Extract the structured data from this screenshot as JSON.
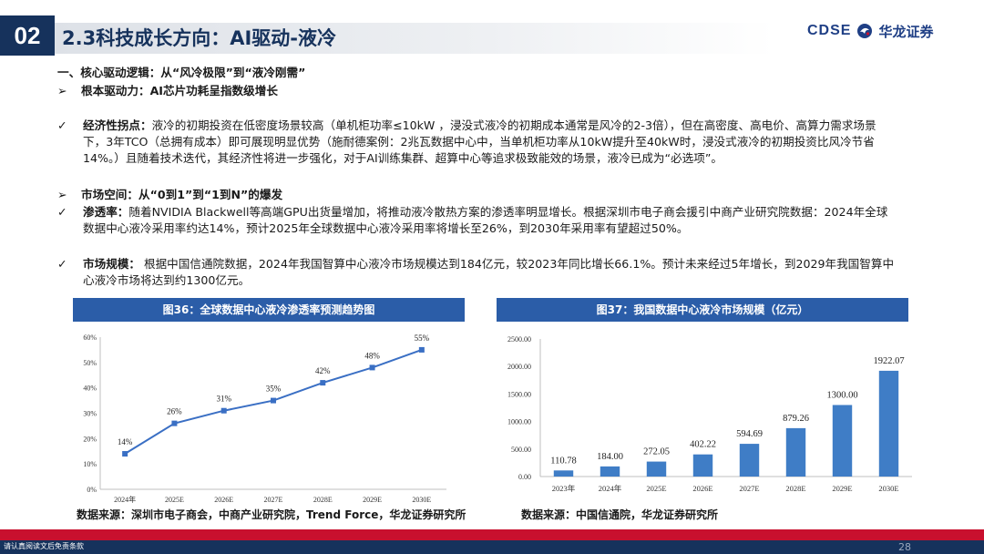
{
  "header": {
    "section_number": "02",
    "title": "2.3科技成长方向：AI驱动-液冷",
    "logo_text": "CDSE",
    "logo_cn": "华龙证券"
  },
  "content": {
    "heading1": "一、核心驱动逻辑：从“风冷极限”到“液冷刚需”",
    "sub1_bullet": "➢",
    "sub1": "根本驱动力：AI芯片功耗呈指数级增长",
    "p1_bullet": "✓",
    "p1_label": "经济性拐点：",
    "p1_text": "液冷的初期投资在低密度场景较高（单机柜功率≤10kW ，浸没式液冷的初期成本通常是风冷的2-3倍），但在高密度、高电价、高算力需求场景下，3年TCO（总拥有成本）即可展现明显优势（施耐德案例：2兆瓦数据中心中，当单机柜功率从10kW提升至40kW时，浸没式液冷的初期投资比风冷节省14%。）且随着技术迭代，其经济性将进一步强化，对于AI训练集群、超算中心等追求极致能效的场景，液冷已成为“必选项”。",
    "sub2_bullet": "➢",
    "sub2": "市场空间：从“0到1”到“1到N”的爆发",
    "p2_bullet": "✓",
    "p2_label": "渗透率：",
    "p2_text": "随着NVIDIA Blackwell等高端GPU出货量增加，将推动液冷散热方案的渗透率明显增长。根据深圳市电子商会援引中商产业研究院数据：2024年全球数据中心液冷采用率约达14%，预计2025年全球数据中心液冷采用率将增长至26%，到2030年采用率有望超过50%。",
    "p3_bullet": "✓",
    "p3_label": "市场规模：",
    "p3_text": " 根据中国信通院数据，2024年我国智算中心液冷市场规模达到184亿元，较2023年同比增长66.1%。预计未来经过5年增长，到2029年我国智算中心液冷市场将达到约1300亿元。"
  },
  "chart_data": [
    {
      "type": "line",
      "title": "图36：全球数据中心液冷渗透率预测趋势图",
      "categories": [
        "2024年",
        "2025E",
        "2026E",
        "2027E",
        "2028E",
        "2029E",
        "2030E"
      ],
      "values": [
        14,
        26,
        31,
        35,
        42,
        48,
        55
      ],
      "value_labels": [
        "14%",
        "26%",
        "31%",
        "35%",
        "42%",
        "48%",
        "55%"
      ],
      "ylim": [
        0,
        60
      ],
      "yticks": [
        "0%",
        "10%",
        "20%",
        "30%",
        "40%",
        "50%",
        "60%"
      ],
      "color": "#3a6fc4",
      "source": "数据来源：深圳市电子商会，中商产业研究院，Trend Force，华龙证券研究所"
    },
    {
      "type": "bar",
      "title": "图37：我国数据中心液冷市场规模（亿元）",
      "categories": [
        "2023年",
        "2024年",
        "2025E",
        "2026E",
        "2027E",
        "2028E",
        "2029E",
        "2030E"
      ],
      "values": [
        110.78,
        184.0,
        272.05,
        402.22,
        594.69,
        879.26,
        1300.0,
        1922.07
      ],
      "value_labels": [
        "110.78",
        "184.00",
        "272.05",
        "402.22",
        "594.69",
        "879.26",
        "1300.00",
        "1922.07"
      ],
      "ylim": [
        0,
        2500
      ],
      "yticks": [
        "0.00",
        "500.00",
        "1000.00",
        "1500.00",
        "2000.00",
        "2500.00"
      ],
      "color": "#3f7dc6",
      "source": "数据来源：中国信通院，华龙证券研究所"
    }
  ],
  "footer": {
    "disclaimer": "请认真阅读文后免责条款",
    "page_number": "28"
  }
}
